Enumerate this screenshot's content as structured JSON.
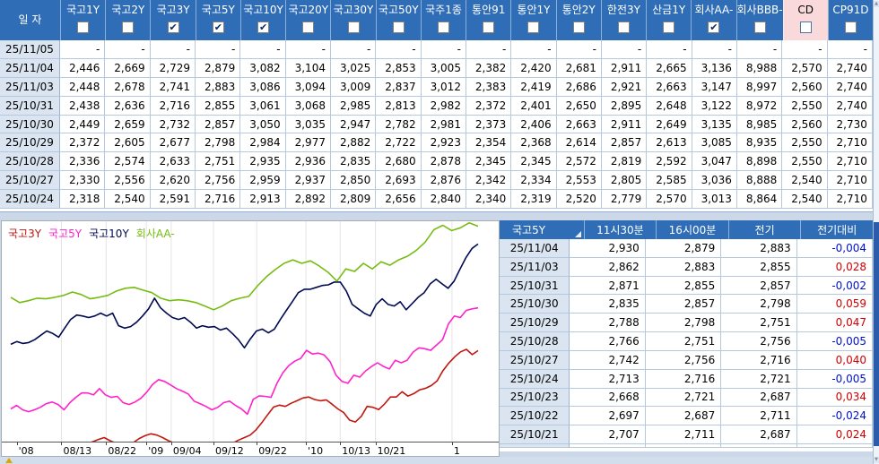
{
  "colors": {
    "header_blue": "#2f6db7",
    "highlight_pink": "#f9d9da",
    "date_cell_bg": "#dbe5f1",
    "grid_border": "#b6c8dc",
    "negative_blue": "#0010c8",
    "positive_red": "#d00000",
    "gridline": "#e4e4e4",
    "scroll_thumb": "#2b5cab"
  },
  "icons": {
    "check": "✔",
    "sort": "corner-triangle",
    "scroll_up": "▲",
    "scroll_down": "▼"
  },
  "top_table": {
    "date_header": "일  자",
    "columns": [
      {
        "label": "국고1Y",
        "checked": false,
        "highlight": false
      },
      {
        "label": "국고2Y",
        "checked": false,
        "highlight": false
      },
      {
        "label": "국고3Y",
        "checked": true,
        "highlight": false
      },
      {
        "label": "국고5Y",
        "checked": true,
        "highlight": false
      },
      {
        "label": "국고10Y",
        "checked": true,
        "highlight": false
      },
      {
        "label": "국고20Y",
        "checked": false,
        "highlight": false
      },
      {
        "label": "국고30Y",
        "checked": false,
        "highlight": false
      },
      {
        "label": "국고50Y",
        "checked": false,
        "highlight": false
      },
      {
        "label": "국주1종",
        "checked": false,
        "highlight": false
      },
      {
        "label": "통안91",
        "checked": false,
        "highlight": false
      },
      {
        "label": "통안1Y",
        "checked": false,
        "highlight": false
      },
      {
        "label": "통안2Y",
        "checked": false,
        "highlight": false
      },
      {
        "label": "한전3Y",
        "checked": false,
        "highlight": false
      },
      {
        "label": "산금1Y",
        "checked": false,
        "highlight": false
      },
      {
        "label": "회사AA-",
        "checked": true,
        "highlight": false
      },
      {
        "label": "회사BBB-",
        "checked": false,
        "highlight": false
      },
      {
        "label": "CD",
        "checked": false,
        "highlight": true
      },
      {
        "label": "CP91D",
        "checked": false,
        "highlight": false
      }
    ],
    "rows": [
      {
        "date": "25/11/05",
        "values": [
          "-",
          "-",
          "-",
          "-",
          "-",
          "-",
          "-",
          "-",
          "-",
          "-",
          "-",
          "-",
          "-",
          "-",
          "-",
          "-",
          "-",
          "-"
        ]
      },
      {
        "date": "25/11/04",
        "values": [
          "2,446",
          "2,669",
          "2,729",
          "2,879",
          "3,082",
          "3,104",
          "3,025",
          "2,853",
          "3,005",
          "2,382",
          "2,420",
          "2,681",
          "2,911",
          "2,665",
          "3,136",
          "8,988",
          "2,570",
          "2,740"
        ]
      },
      {
        "date": "25/11/03",
        "values": [
          "2,448",
          "2,678",
          "2,741",
          "2,883",
          "3,086",
          "3,094",
          "3,009",
          "2,837",
          "3,012",
          "2,383",
          "2,419",
          "2,686",
          "2,921",
          "2,663",
          "3,147",
          "8,997",
          "2,560",
          "2,740"
        ]
      },
      {
        "date": "25/10/31",
        "values": [
          "2,438",
          "2,636",
          "2,716",
          "2,855",
          "3,061",
          "3,068",
          "2,985",
          "2,813",
          "2,982",
          "2,372",
          "2,401",
          "2,650",
          "2,895",
          "2,648",
          "3,122",
          "8,972",
          "2,550",
          "2,740"
        ]
      },
      {
        "date": "25/10/30",
        "values": [
          "2,449",
          "2,659",
          "2,732",
          "2,857",
          "3,050",
          "3,035",
          "2,947",
          "2,782",
          "2,981",
          "2,373",
          "2,406",
          "2,663",
          "2,911",
          "2,649",
          "3,135",
          "8,985",
          "2,560",
          "2,730"
        ]
      },
      {
        "date": "25/10/29",
        "values": [
          "2,372",
          "2,605",
          "2,677",
          "2,798",
          "2,984",
          "2,977",
          "2,882",
          "2,722",
          "2,923",
          "2,354",
          "2,368",
          "2,614",
          "2,857",
          "2,613",
          "3,085",
          "8,935",
          "2,550",
          "2,710"
        ]
      },
      {
        "date": "25/10/28",
        "values": [
          "2,336",
          "2,574",
          "2,633",
          "2,751",
          "2,935",
          "2,936",
          "2,835",
          "2,680",
          "2,878",
          "2,345",
          "2,345",
          "2,572",
          "2,819",
          "2,592",
          "3,047",
          "8,898",
          "2,550",
          "2,710"
        ]
      },
      {
        "date": "25/10/27",
        "values": [
          "2,330",
          "2,556",
          "2,620",
          "2,756",
          "2,959",
          "2,937",
          "2,850",
          "2,693",
          "2,876",
          "2,342",
          "2,334",
          "2,553",
          "2,805",
          "2,585",
          "3,036",
          "8,888",
          "2,540",
          "2,710"
        ]
      },
      {
        "date": "25/10/24",
        "values": [
          "2,318",
          "2,540",
          "2,591",
          "2,716",
          "2,913",
          "2,892",
          "2,809",
          "2,656",
          "2,840",
          "2,340",
          "2,319",
          "2,520",
          "2,779",
          "2,570",
          "3,013",
          "8,864",
          "2,540",
          "2,710"
        ]
      }
    ]
  },
  "right_table": {
    "title": "국고5Y",
    "columns": [
      "11시30분",
      "16시00분",
      "전기",
      "전기대비"
    ],
    "rows": [
      {
        "date": "25/11/04",
        "values": [
          "2,930",
          "2,879",
          "2,883",
          "-0,004"
        ]
      },
      {
        "date": "25/11/03",
        "values": [
          "2,862",
          "2,883",
          "2,855",
          "0,028"
        ]
      },
      {
        "date": "25/10/31",
        "values": [
          "2,871",
          "2,855",
          "2,857",
          "-0,002"
        ]
      },
      {
        "date": "25/10/30",
        "values": [
          "2,835",
          "2,857",
          "2,798",
          "0,059"
        ]
      },
      {
        "date": "25/10/29",
        "values": [
          "2,788",
          "2,798",
          "2,751",
          "0,047"
        ]
      },
      {
        "date": "25/10/28",
        "values": [
          "2,766",
          "2,751",
          "2,756",
          "-0,005"
        ]
      },
      {
        "date": "25/10/27",
        "values": [
          "2,742",
          "2,756",
          "2,716",
          "0,040"
        ]
      },
      {
        "date": "25/10/24",
        "values": [
          "2,713",
          "2,716",
          "2,721",
          "-0,005"
        ]
      },
      {
        "date": "25/10/23",
        "values": [
          "2,668",
          "2,721",
          "2,687",
          "0,034"
        ]
      },
      {
        "date": "25/10/22",
        "values": [
          "2,697",
          "2,687",
          "2,711",
          "-0,024"
        ]
      },
      {
        "date": "25/10/21",
        "values": [
          "2,707",
          "2,711",
          "2,687",
          "0,024"
        ]
      }
    ]
  },
  "chart_data": {
    "type": "line",
    "title": "",
    "xlabel": "",
    "ylabel": "",
    "grid": true,
    "legend_position": "top-left",
    "ylim": [
      2.445,
      3.152
    ],
    "x_ticks": [
      {
        "label": "'08",
        "pos": 0.03
      },
      {
        "label": "08/13",
        "pos": 0.12
      },
      {
        "label": "08/22",
        "pos": 0.21
      },
      {
        "label": "'09",
        "pos": 0.291
      },
      {
        "label": "09/04",
        "pos": 0.341
      },
      {
        "label": "09/12",
        "pos": 0.426
      },
      {
        "label": "09/22",
        "pos": 0.513
      },
      {
        "label": "'10",
        "pos": 0.612
      },
      {
        "label": "10/13",
        "pos": 0.681
      },
      {
        "label": "10/21",
        "pos": 0.752
      },
      {
        "label": "1",
        "pos": 0.906
      }
    ],
    "series": [
      {
        "name": "국고3Y",
        "color": "#c01810",
        "values": [
          2.436,
          2.433,
          2.437,
          2.44,
          2.437,
          2.434,
          2.438,
          2.441,
          2.437,
          2.434,
          2.438,
          2.44,
          2.437,
          2.44,
          2.444,
          2.452,
          2.458,
          2.448,
          2.44,
          2.436,
          2.44,
          2.442,
          2.455,
          2.464,
          2.47,
          2.466,
          2.458,
          2.448,
          2.44,
          2.435,
          2.432,
          2.436,
          2.433,
          2.437,
          2.44,
          2.436,
          2.44,
          2.437,
          2.44,
          2.45,
          2.458,
          2.466,
          2.483,
          2.506,
          2.532,
          2.556,
          2.562,
          2.558,
          2.568,
          2.576,
          2.585,
          2.588,
          2.58,
          2.576,
          2.579,
          2.565,
          2.55,
          2.538,
          2.514,
          2.508,
          2.526,
          2.558,
          2.555,
          2.548,
          2.566,
          2.588,
          2.588,
          2.605,
          2.591,
          2.599,
          2.611,
          2.616,
          2.625,
          2.64,
          2.673,
          2.697,
          2.717,
          2.733,
          2.741,
          2.724,
          2.737
        ]
      },
      {
        "name": "국고5Y",
        "color": "#ff22cc",
        "values": [
          2.55,
          2.561,
          2.547,
          2.541,
          2.547,
          2.555,
          2.567,
          2.572,
          2.564,
          2.547,
          2.57,
          2.587,
          2.601,
          2.601,
          2.595,
          2.615,
          2.595,
          2.587,
          2.59,
          2.57,
          2.564,
          2.572,
          2.584,
          2.604,
          2.629,
          2.644,
          2.638,
          2.627,
          2.615,
          2.607,
          2.598,
          2.575,
          2.567,
          2.558,
          2.547,
          2.555,
          2.57,
          2.575,
          2.561,
          2.55,
          2.533,
          2.581,
          2.592,
          2.59,
          2.587,
          2.632,
          2.666,
          2.689,
          2.703,
          2.712,
          2.738,
          2.726,
          2.729,
          2.723,
          2.701,
          2.658,
          2.638,
          2.632,
          2.658,
          2.652,
          2.672,
          2.686,
          2.698,
          2.686,
          2.678,
          2.706,
          2.698,
          2.706,
          2.732,
          2.746,
          2.743,
          2.738,
          2.755,
          2.772,
          2.823,
          2.848,
          2.843,
          2.866,
          2.871,
          2.874
        ]
      },
      {
        "name": "국고10Y",
        "color": "#000a50",
        "values": [
          2.757,
          2.766,
          2.76,
          2.763,
          2.772,
          2.786,
          2.8,
          2.792,
          2.78,
          2.809,
          2.837,
          2.851,
          2.848,
          2.843,
          2.848,
          2.857,
          2.848,
          2.857,
          2.817,
          2.809,
          2.814,
          2.828,
          2.848,
          2.871,
          2.905,
          2.874,
          2.857,
          2.843,
          2.837,
          2.843,
          2.828,
          2.809,
          2.817,
          2.812,
          2.814,
          2.803,
          2.809,
          2.792,
          2.772,
          2.746,
          2.775,
          2.8,
          2.806,
          2.794,
          2.806,
          2.837,
          2.866,
          2.894,
          2.923,
          2.934,
          2.934,
          2.94,
          2.946,
          2.948,
          2.957,
          2.957,
          2.928,
          2.885,
          2.871,
          2.857,
          2.848,
          2.885,
          2.903,
          2.885,
          2.88,
          2.894,
          2.868,
          2.888,
          2.908,
          2.923,
          2.951,
          2.966,
          2.951,
          2.937,
          2.96,
          2.999,
          3.036,
          3.065,
          3.079
        ]
      },
      {
        "name": "회사AA-",
        "color": "#76bc10",
        "values": [
          2.908,
          2.891,
          2.897,
          2.905,
          2.903,
          2.908,
          2.914,
          2.925,
          2.917,
          2.903,
          2.908,
          2.914,
          2.928,
          2.937,
          2.94,
          2.931,
          2.923,
          2.905,
          2.897,
          2.9,
          2.897,
          2.891,
          2.88,
          2.868,
          2.88,
          2.897,
          2.905,
          2.911,
          2.945,
          2.974,
          2.997,
          3.017,
          3.028,
          3.017,
          3.025,
          3.008,
          2.988,
          2.96,
          2.999,
          2.991,
          3.017,
          2.999,
          3.022,
          3.011,
          3.028,
          3.04,
          3.059,
          3.085,
          3.125,
          3.139,
          3.122,
          3.131,
          3.147,
          3.136
        ]
      }
    ]
  }
}
